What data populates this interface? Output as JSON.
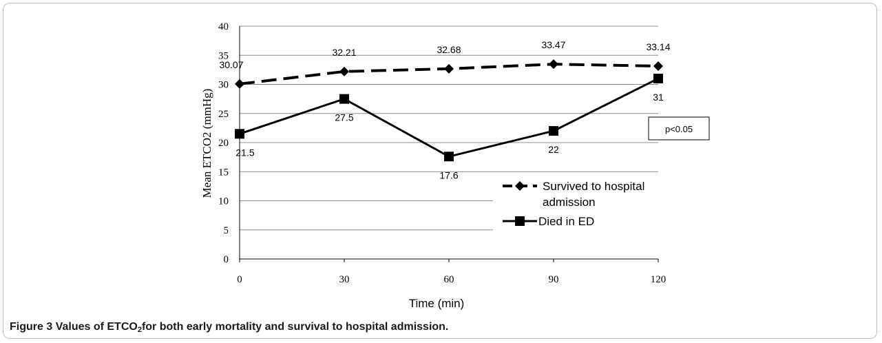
{
  "chart_data": {
    "type": "line",
    "x": [
      0,
      30,
      60,
      90,
      120
    ],
    "xlabel": "Time (min)",
    "ylabel": "Mean ETCO2 (mmHg)",
    "ylim": [
      0,
      40
    ],
    "yticks": [
      0,
      5,
      10,
      15,
      20,
      25,
      30,
      35,
      40
    ],
    "xticks": [
      0,
      30,
      60,
      90,
      120
    ],
    "grid": true,
    "legend_position": "right",
    "series": [
      {
        "name": "Survived to hospital admission",
        "values": [
          30.07,
          32.21,
          32.68,
          33.47,
          33.14
        ],
        "labels": [
          "30.07",
          "32.21",
          "32.68",
          "33.47",
          "33.14"
        ],
        "style": "dashed",
        "marker": "diamond",
        "color": "#000000"
      },
      {
        "name": "Died in ED",
        "values": [
          21.5,
          27.5,
          17.6,
          22,
          31
        ],
        "labels": [
          "21.5",
          "27.5",
          "17.6",
          "22",
          "31"
        ],
        "style": "solid",
        "marker": "square",
        "color": "#000000"
      }
    ],
    "annotation": "p<0.05"
  },
  "caption": {
    "figure_label": "Figure 3",
    "text_before_sub": "Values of ETCO",
    "sub": "2",
    "text_after_sub": "for both early mortality and survival to hospital admission."
  },
  "legend": {
    "survived_line1": "Survived to hospital",
    "survived_line2": "admission",
    "died": "Died in ED"
  }
}
